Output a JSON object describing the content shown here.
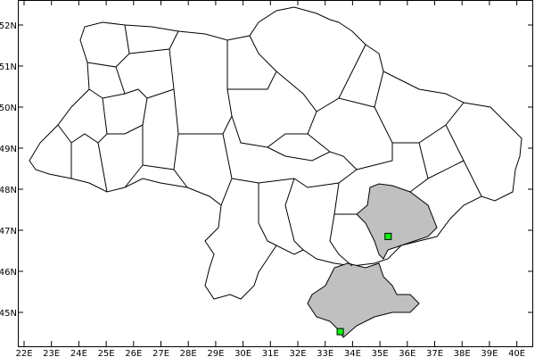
{
  "map": {
    "x_ticks": [
      "22E",
      "23E",
      "24E",
      "25E",
      "26E",
      "27E",
      "28E",
      "29E",
      "30E",
      "31E",
      "32E",
      "33E",
      "34E",
      "35E",
      "36E",
      "37E",
      "38E",
      "39E",
      "40E"
    ],
    "y_ticks": [
      "52N",
      "51N",
      "50N",
      "49N",
      "48N",
      "47N",
      "46N",
      "45N"
    ],
    "x_tick_values": [
      22,
      23,
      24,
      25,
      26,
      27,
      28,
      29,
      30,
      31,
      32,
      33,
      34,
      35,
      36,
      37,
      38,
      39,
      40
    ],
    "y_tick_values": [
      52,
      51,
      50,
      49,
      48,
      47,
      46,
      45
    ],
    "highlighted_regions": [
      "Zaporizhzhia",
      "Crimea"
    ],
    "highlight_color": "#c0c0c0",
    "markers": [
      {
        "lon": 35.3,
        "lat": 46.85,
        "color": "#00ff00"
      },
      {
        "lon": 33.55,
        "lat": 44.53,
        "color": "#00ff00"
      }
    ]
  }
}
